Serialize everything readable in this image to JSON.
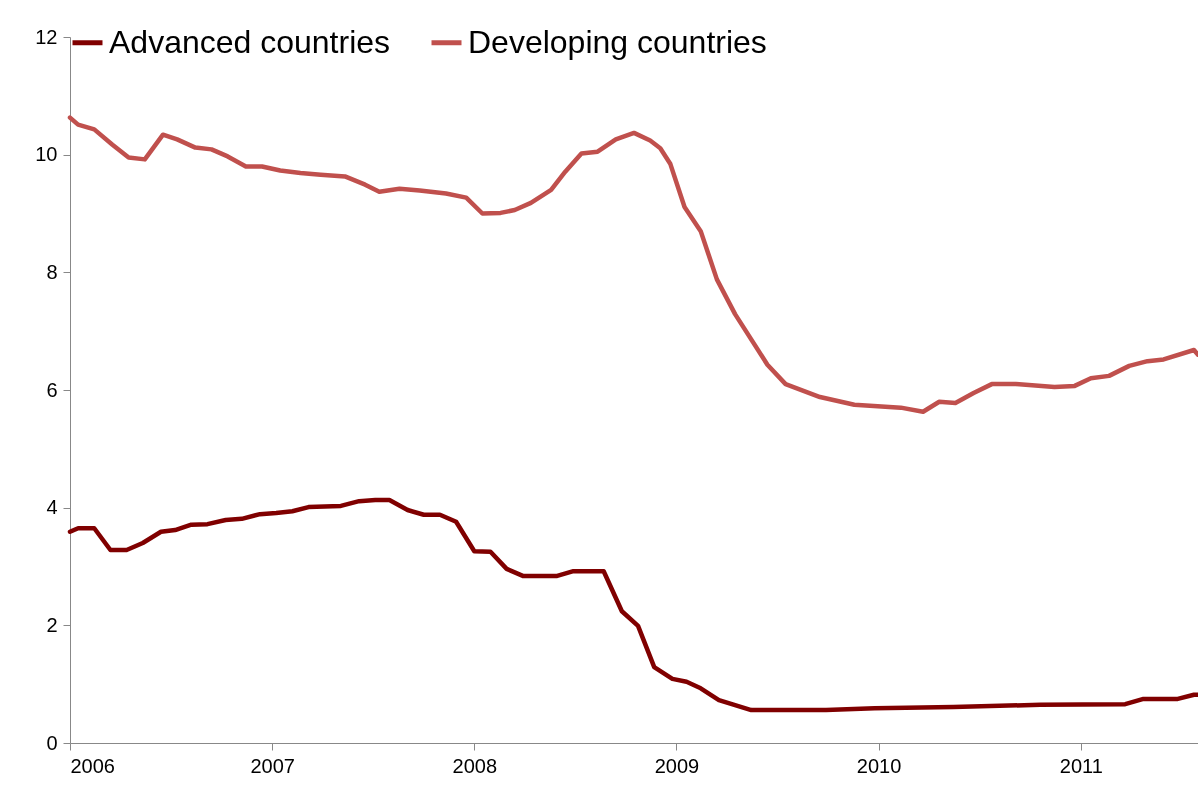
{
  "chart_data": {
    "type": "line",
    "xlim": [
      2006,
      2011.58
    ],
    "xticks": [
      2006,
      2007,
      2008,
      2009,
      2010,
      2011
    ],
    "ylim": [
      0,
      12
    ],
    "yticks": [
      0,
      2,
      4,
      6,
      8,
      10,
      12
    ],
    "grid": false,
    "legend": "top",
    "marker": "none",
    "line_style": "solid",
    "series": [
      {
        "name": "Advanced countries",
        "color": "#800000",
        "x": [
          2006.0,
          2006.04,
          2006.12,
          2006.2,
          2006.28,
          2006.36,
          2006.45,
          2006.52,
          2006.6,
          2006.68,
          2006.77,
          2006.85,
          2006.94,
          2007.02,
          2007.1,
          2007.18,
          2007.34,
          2007.43,
          2007.51,
          2007.58,
          2007.67,
          2007.75,
          2007.83,
          2007.91,
          2008.0,
          2008.08,
          2008.16,
          2008.24,
          2008.41,
          2008.49,
          2008.64,
          2008.73,
          2008.81,
          2008.89,
          2008.98,
          2009.05,
          2009.12,
          2009.21,
          2009.37,
          2009.74,
          2009.98,
          2010.37,
          2010.8,
          2011.22,
          2011.31,
          2011.48,
          2011.56,
          2011.58
        ],
        "values": [
          3.59,
          3.65,
          3.65,
          3.28,
          3.28,
          3.4,
          3.59,
          3.62,
          3.71,
          3.72,
          3.79,
          3.81,
          3.89,
          3.91,
          3.94,
          4.01,
          4.03,
          4.11,
          4.13,
          4.13,
          3.96,
          3.88,
          3.88,
          3.76,
          3.26,
          3.25,
          2.96,
          2.84,
          2.84,
          2.92,
          2.92,
          2.24,
          1.99,
          1.29,
          1.09,
          1.04,
          0.93,
          0.73,
          0.56,
          0.56,
          0.59,
          0.61,
          0.65,
          0.66,
          0.75,
          0.75,
          0.82,
          0.82
        ]
      },
      {
        "name": "Developing countries",
        "color": "#c0504d",
        "x": [
          2006.0,
          2006.04,
          2006.12,
          2006.21,
          2006.29,
          2006.37,
          2006.46,
          2006.53,
          2006.62,
          2006.7,
          2006.78,
          2006.87,
          2006.95,
          2007.04,
          2007.14,
          2007.24,
          2007.36,
          2007.46,
          2007.53,
          2007.63,
          2007.73,
          2007.86,
          2007.96,
          2008.04,
          2008.13,
          2008.2,
          2008.28,
          2008.38,
          2008.45,
          2008.53,
          2008.61,
          2008.7,
          2008.79,
          2008.87,
          2008.92,
          2008.97,
          2009.04,
          2009.12,
          2009.2,
          2009.29,
          2009.45,
          2009.54,
          2009.71,
          2009.88,
          2010.11,
          2010.22,
          2010.3,
          2010.38,
          2010.47,
          2010.56,
          2010.68,
          2010.87,
          2010.97,
          2011.05,
          2011.14,
          2011.24,
          2011.33,
          2011.41,
          2011.56,
          2011.58
        ],
        "values": [
          10.63,
          10.51,
          10.43,
          10.17,
          9.95,
          9.92,
          10.34,
          10.26,
          10.12,
          10.09,
          9.97,
          9.8,
          9.8,
          9.73,
          9.69,
          9.66,
          9.63,
          9.49,
          9.37,
          9.42,
          9.39,
          9.34,
          9.27,
          9.0,
          9.01,
          9.06,
          9.18,
          9.4,
          9.71,
          10.02,
          10.05,
          10.26,
          10.37,
          10.24,
          10.11,
          9.84,
          9.11,
          8.7,
          7.88,
          7.29,
          6.43,
          6.1,
          5.88,
          5.75,
          5.7,
          5.63,
          5.8,
          5.78,
          5.95,
          6.1,
          6.1,
          6.05,
          6.07,
          6.2,
          6.24,
          6.41,
          6.49,
          6.52,
          6.68,
          6.6
        ]
      }
    ]
  }
}
